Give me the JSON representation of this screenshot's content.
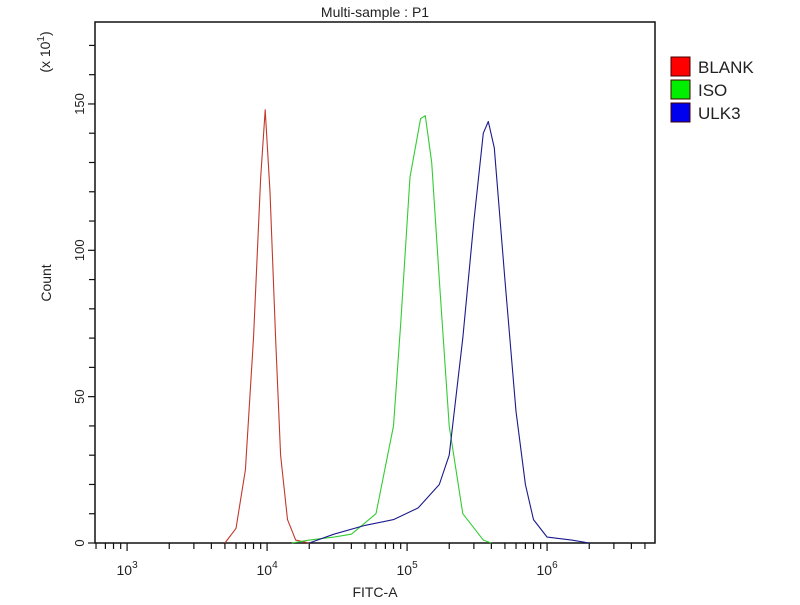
{
  "chart_data": {
    "type": "line",
    "title": "Multi-sample : P1",
    "xlabel": "FITC-A",
    "ylabel": "Count",
    "y_multiplier": "(x 10",
    "y_multiplier_exp": "1",
    "x_scale": "log",
    "xlim": [
      590,
      5900000
    ],
    "ylim": [
      0,
      178
    ],
    "x_ticks": [
      {
        "value": 1000,
        "base": "10",
        "exp": "3"
      },
      {
        "value": 10000,
        "base": "10",
        "exp": "4"
      },
      {
        "value": 100000,
        "base": "10",
        "exp": "5"
      },
      {
        "value": 1000000,
        "base": "10",
        "exp": "6"
      }
    ],
    "y_ticks": [
      0,
      50,
      100,
      150
    ],
    "y_minor_step": 10,
    "grid": false,
    "legend_position": "right",
    "series": [
      {
        "name": "BLANK",
        "color": "#c0392b",
        "legend_color": "#ff0000",
        "points": [
          [
            5000,
            0
          ],
          [
            6000,
            5
          ],
          [
            7000,
            25
          ],
          [
            8000,
            70
          ],
          [
            9000,
            125
          ],
          [
            9700,
            148
          ],
          [
            10500,
            120
          ],
          [
            11500,
            70
          ],
          [
            12500,
            30
          ],
          [
            14000,
            8
          ],
          [
            16000,
            1
          ],
          [
            20000,
            0
          ]
        ]
      },
      {
        "name": "ISO",
        "color": "#33cc33",
        "legend_color": "#00ee00",
        "points": [
          [
            15000,
            0
          ],
          [
            20000,
            1
          ],
          [
            30000,
            2
          ],
          [
            40000,
            3
          ],
          [
            60000,
            10
          ],
          [
            80000,
            40
          ],
          [
            90000,
            75
          ],
          [
            105000,
            125
          ],
          [
            125000,
            145
          ],
          [
            135000,
            146
          ],
          [
            150000,
            130
          ],
          [
            170000,
            90
          ],
          [
            200000,
            40
          ],
          [
            250000,
            10
          ],
          [
            350000,
            1
          ],
          [
            400000,
            0
          ]
        ]
      },
      {
        "name": "ULK3",
        "color": "#1a1a8c",
        "legend_color": "#0000ee",
        "points": [
          [
            20000,
            0
          ],
          [
            30000,
            3
          ],
          [
            50000,
            6
          ],
          [
            80000,
            8
          ],
          [
            120000,
            12
          ],
          [
            170000,
            20
          ],
          [
            200000,
            30
          ],
          [
            250000,
            70
          ],
          [
            300000,
            110
          ],
          [
            350000,
            140
          ],
          [
            380000,
            144
          ],
          [
            420000,
            135
          ],
          [
            500000,
            90
          ],
          [
            600000,
            45
          ],
          [
            700000,
            20
          ],
          [
            800000,
            8
          ],
          [
            1000000,
            2
          ],
          [
            1500000,
            1
          ],
          [
            2000000,
            0
          ]
        ]
      }
    ]
  }
}
